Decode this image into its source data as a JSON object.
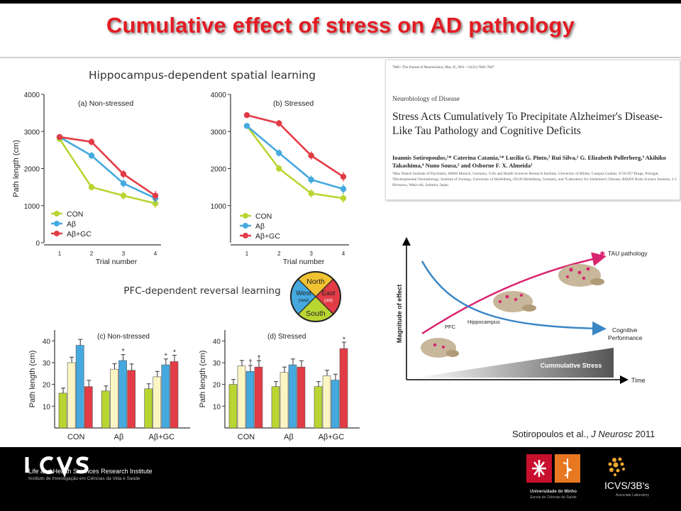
{
  "slide": {
    "title": "Cumulative effect of stress on AD pathology",
    "citation": {
      "authors": "Sotiropoulos et al., ",
      "journal": "J Neurosc",
      "year": " 2011"
    }
  },
  "figure": {
    "top_heading": "Hippocampus-dependent spatial learning",
    "bottom_heading": "PFC-dependent reversal learning",
    "legend": [
      "CON",
      "Aβ",
      "Aβ+GC"
    ],
    "maze": {
      "north": "North",
      "south": "South",
      "west": "West",
      "west_sub": "(new)",
      "east": "East",
      "east_sub": "(old)"
    }
  },
  "colors": {
    "con": "#b9d532",
    "abeta": "#45a9e0",
    "abgc": "#e23c46",
    "title": "#e31b23",
    "arrow_pink": "#d8236e",
    "arrow_blue": "#3a86c4"
  },
  "chart_data": [
    {
      "type": "line",
      "title": "(a) Non-stressed",
      "xlabel": "Trial number",
      "ylabel": "Path length (cm)",
      "x": [
        1,
        2,
        3,
        4
      ],
      "ylim": [
        0,
        4000
      ],
      "yticks": [
        0,
        1000,
        2000,
        3000,
        4000
      ],
      "series": [
        {
          "name": "CON",
          "values": [
            2800,
            1500,
            1270,
            1060
          ]
        },
        {
          "name": "Aβ",
          "values": [
            2850,
            2350,
            1600,
            1200
          ]
        },
        {
          "name": "Aβ+GC",
          "values": [
            2850,
            2720,
            1850,
            1270
          ]
        }
      ]
    },
    {
      "type": "line",
      "title": "(b) Stressed",
      "xlabel": "Trial number",
      "ylabel": "",
      "x": [
        1,
        2,
        3,
        4
      ],
      "ylim": [
        0,
        4000
      ],
      "yticks": [
        1000,
        2000,
        3000,
        4000
      ],
      "series": [
        {
          "name": "CON",
          "values": [
            3150,
            2000,
            1330,
            1200
          ]
        },
        {
          "name": "Aβ",
          "values": [
            3150,
            2420,
            1700,
            1450
          ]
        },
        {
          "name": "Aβ+GC",
          "values": [
            3440,
            3220,
            2350,
            1780
          ]
        }
      ]
    },
    {
      "type": "bar",
      "title": "(c) Non-stressed",
      "ylabel": "Path length (cm)",
      "categories": [
        "CON",
        "Aβ",
        "Aβ+GC"
      ],
      "ylim": [
        0,
        45
      ],
      "yticks": [
        10,
        20,
        30,
        40
      ],
      "series": [
        {
          "values": [
            16,
            17,
            18
          ]
        },
        {
          "values": [
            30,
            27,
            23.5
          ]
        },
        {
          "values": [
            38,
            31,
            29
          ]
        },
        {
          "values": [
            19,
            26.5,
            30.5
          ]
        }
      ],
      "markers": [
        {
          "category": 1,
          "bar": 2,
          "label": "*"
        },
        {
          "category": 2,
          "bar": 2,
          "label": "*"
        },
        {
          "category": 2,
          "bar": 3,
          "label": "*"
        }
      ]
    },
    {
      "type": "bar",
      "title": "(d) Stressed",
      "ylabel": "Path length (cm)",
      "categories": [
        "CON",
        "Aβ",
        "Aβ+GC"
      ],
      "ylim": [
        0,
        45
      ],
      "yticks": [
        10,
        20,
        30,
        40
      ],
      "series": [
        {
          "values": [
            20,
            19,
            19
          ]
        },
        {
          "values": [
            28.5,
            25.5,
            24
          ]
        },
        {
          "values": [
            26,
            29,
            22
          ]
        },
        {
          "values": [
            28,
            28,
            36.5
          ]
        }
      ],
      "markers": [
        {
          "category": 0,
          "bar": 2,
          "label": "†"
        },
        {
          "category": 0,
          "bar": 3,
          "label": "†"
        },
        {
          "category": 2,
          "bar": 3,
          "label": "*"
        }
      ]
    }
  ],
  "paper": {
    "header": "7840 • The Journal of Neuroscience, May 25, 2011 • 31(21):7840–7847",
    "section": "Neurobiology of Disease",
    "title": "Stress Acts Cumulatively To Precipitate Alzheimer's Disease-Like Tau Pathology and Cognitive Deficits",
    "authors": "Ioannis Sotiropoulos,¹* Caterina Catania,¹* Lucilia G. Pinto,² Rui Silva,² G. Elizabeth Pollerberg,³ Akihiko Takashima,⁴ Nuno Sousa,² and Osborne F. X. Almeida¹",
    "affiliations": "¹Max Planck Institute of Psychiatry, 80804 Munich, Germany, ²Life and Health Sciences Research Institute, University of Minho, Campus Gualtar, 4710-057 Braga, Portugal, ³Developmental Neurobiology, Institute of Zoology, University of Heidelberg, 69120 Heidelberg, Germany, and ⁴Laboratory for Alzheimer's Disease, RIKEN Brain Science Institute, 2-1 Hirosawa, Wako-shi, Saitama, Japan"
  },
  "concept": {
    "yaxis": "Magnitude of effect",
    "xaxis": "Time",
    "tau": "TAU pathology",
    "cognitive1": "Cognitive",
    "cognitive2": "Performance",
    "stress": "Cummulative Stress",
    "pfc": "PFC",
    "hippocampus": "Hippocampus"
  },
  "footer": {
    "icvs_line1": "Life and Health Sciences Research Institute",
    "icvs_line2": "Instituto de Investigação em Ciências da Vida e Saúde",
    "um_name": "Universidade do Minho",
    "um_school": "Escola de Ciências da Saúde",
    "b3_name": "ICVS/3B's",
    "b3_sub": "Associate Laboratory"
  }
}
